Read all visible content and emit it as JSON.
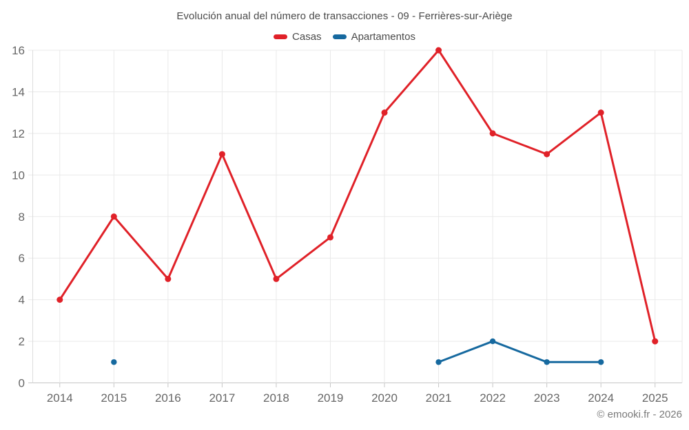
{
  "attribution": "© emooki.fr - 2026",
  "colors": {
    "casas": "#e02128",
    "apartamentos": "#16699f",
    "grid": "#e9e9e9",
    "axis_line": "#c6c6c6",
    "left_axis_line": "#dcdcdc",
    "tick_text": "#666666",
    "title_text": "#4a4a4a",
    "attribution_text": "#7a7a7a",
    "background": "#ffffff"
  },
  "chart_data": {
    "type": "line",
    "title": "Evolución anual del número de transacciones - 09 - Ferrières-sur-Ariège",
    "xlabel": "",
    "ylabel": "",
    "categories": [
      "2014",
      "2015",
      "2016",
      "2017",
      "2018",
      "2019",
      "2020",
      "2021",
      "2022",
      "2023",
      "2024",
      "2025"
    ],
    "series": [
      {
        "name": "Casas",
        "color": "#e02128",
        "marker_radius": 4.5,
        "values": [
          4,
          8,
          5,
          11,
          5,
          7,
          13,
          16,
          12,
          11,
          13,
          2
        ]
      },
      {
        "name": "Apartamentos",
        "color": "#16699f",
        "marker_radius": 4.2,
        "values": [
          null,
          1,
          null,
          null,
          null,
          null,
          null,
          1,
          2,
          1,
          1,
          null
        ]
      }
    ],
    "ylim": [
      0,
      16
    ],
    "ytick_step": 2,
    "grid": true,
    "legend_position": "top"
  }
}
